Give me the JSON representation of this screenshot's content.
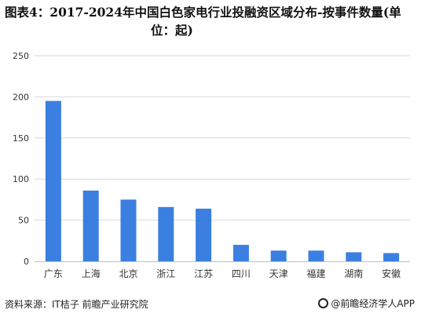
{
  "title": {
    "line1": "图表4：2017-2024年中国白色家电行业投融资区域分布-按事件数量(单",
    "line2": "位：起)"
  },
  "footer": {
    "source": "资料来源：IT桔子 前瞻产业研究院",
    "brand": "@前瞻经济学人APP"
  },
  "colors": {
    "bar": "#3b7fe0",
    "grid": "#d9d9d9",
    "axis": "#bfbfbf"
  },
  "chart_data": {
    "type": "bar",
    "categories": [
      "广东",
      "上海",
      "北京",
      "浙江",
      "江苏",
      "四川",
      "天津",
      "福建",
      "湖南",
      "安徽"
    ],
    "values": [
      195,
      86,
      75,
      66,
      64,
      20,
      13,
      13,
      11,
      10
    ],
    "yticks": [
      0,
      50,
      100,
      150,
      200,
      250
    ],
    "ylim": [
      0,
      250
    ],
    "grid": true,
    "legend": "none"
  }
}
